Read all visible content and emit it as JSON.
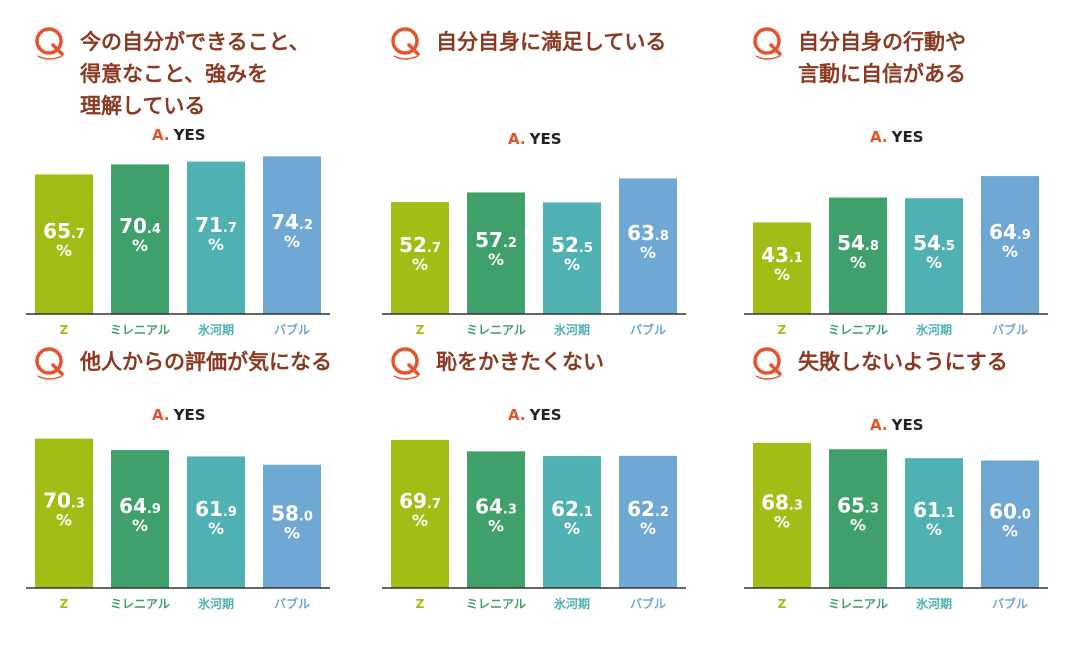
{
  "colors": {
    "gen_z": "#a3bd16",
    "millennial": "#3fa06b",
    "hyogaki": "#4fb1b1",
    "bubble": "#6fa8d3",
    "question": "#e6542e",
    "title": "#8a3a22",
    "axis": "#333333"
  },
  "answer_prefix": "A.",
  "answer_label": "YES",
  "chart_data": [
    {
      "type": "bar",
      "title_lines": [
        "今の自分ができること、",
        "得意なこと、強みを",
        "理解している"
      ],
      "categories": [
        "Z",
        "ミレニアル",
        "氷河期",
        "バブル"
      ],
      "values": [
        65.7,
        70.4,
        71.7,
        74.2
      ],
      "labels": [
        "65.7",
        "70.4",
        "71.7",
        "74.2"
      ],
      "unit": "%",
      "ylim": [
        0,
        80
      ]
    },
    {
      "type": "bar",
      "title_lines": [
        "自分自身に満足している"
      ],
      "categories": [
        "Z",
        "ミレニアル",
        "氷河期",
        "バブル"
      ],
      "values": [
        52.7,
        57.2,
        52.5,
        63.8
      ],
      "labels": [
        "52.7",
        "57.2",
        "52.5",
        "63.8"
      ],
      "unit": "%",
      "ylim": [
        0,
        80
      ]
    },
    {
      "type": "bar",
      "title_lines": [
        "自分自身の行動や",
        "言動に自信がある"
      ],
      "categories": [
        "Z",
        "ミレニアル",
        "氷河期",
        "バブル"
      ],
      "values": [
        43.1,
        54.8,
        54.5,
        64.9
      ],
      "labels": [
        "43.1",
        "54.8",
        "54.5",
        "64.9"
      ],
      "unit": "%",
      "ylim": [
        0,
        80
      ]
    },
    {
      "type": "bar",
      "title_lines": [
        "他人からの評価が気になる"
      ],
      "categories": [
        "Z",
        "ミレニアル",
        "氷河期",
        "バブル"
      ],
      "values": [
        70.3,
        64.9,
        61.9,
        58.0
      ],
      "labels": [
        "70.3",
        "64.9",
        "61.9",
        "58.0"
      ],
      "unit": "%",
      "ylim": [
        0,
        80
      ]
    },
    {
      "type": "bar",
      "title_lines": [
        "恥をかきたくない"
      ],
      "categories": [
        "Z",
        "ミレニアル",
        "氷河期",
        "バブル"
      ],
      "values": [
        69.7,
        64.3,
        62.1,
        62.2
      ],
      "labels": [
        "69.7",
        "64.3",
        "62.1",
        "62.2"
      ],
      "unit": "%",
      "ylim": [
        0,
        80
      ]
    },
    {
      "type": "bar",
      "title_lines": [
        "失敗しないようにする"
      ],
      "categories": [
        "Z",
        "ミレニアル",
        "氷河期",
        "バブル"
      ],
      "values": [
        68.3,
        65.3,
        61.1,
        60.0
      ],
      "labels": [
        "68.3",
        "65.3",
        "61.1",
        "60.0"
      ],
      "unit": "%",
      "ylim": [
        0,
        80
      ]
    }
  ]
}
